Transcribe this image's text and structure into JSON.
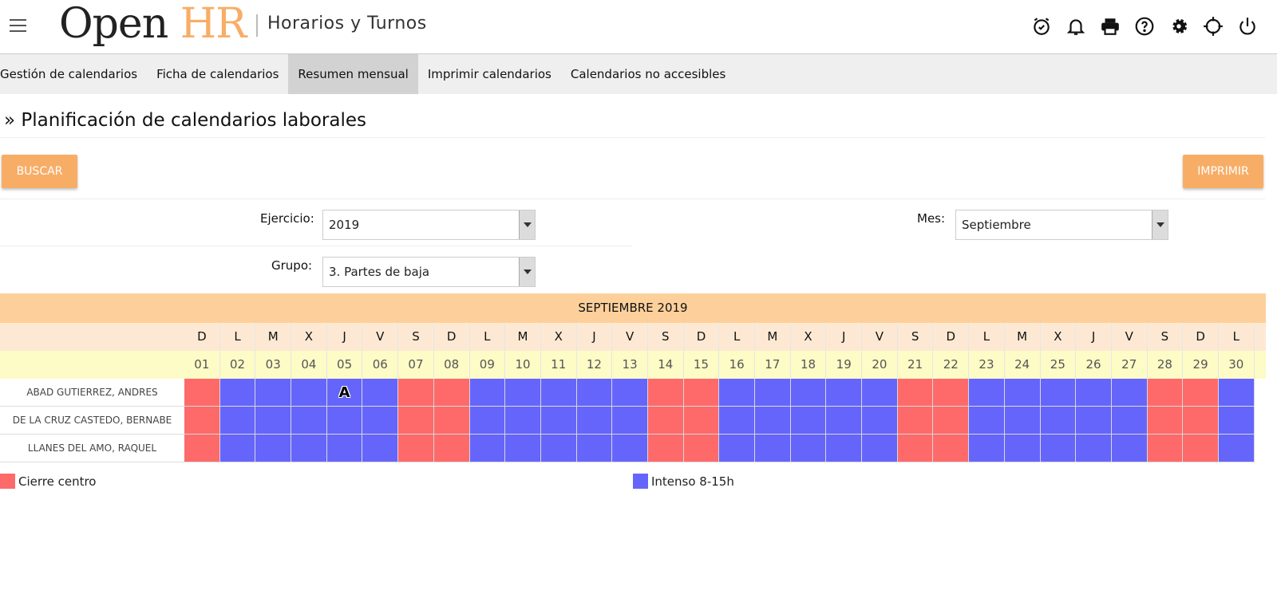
{
  "header": {
    "logo_open": "Open",
    "logo_hr": "HR",
    "app_title": "Horarios y Turnos",
    "icons": [
      "alarm-clock-icon",
      "bell-icon",
      "printer-icon",
      "help-icon",
      "gear-icon",
      "crosshair-icon",
      "power-icon"
    ]
  },
  "tabs": [
    {
      "label": "Gestión de calendarios",
      "active": false
    },
    {
      "label": "Ficha de calendarios",
      "active": false
    },
    {
      "label": "Resumen mensual",
      "active": true
    },
    {
      "label": "Imprimir calendarios",
      "active": false
    },
    {
      "label": "Calendarios no accesibles",
      "active": false
    }
  ],
  "page_title": "» Planificación de calendarios laborales",
  "buttons": {
    "search": "BUSCAR",
    "print": "IMPRIMIR"
  },
  "filters": {
    "ejercicio_label": "Ejercicio:",
    "ejercicio_value": "2019",
    "mes_label": "Mes:",
    "mes_value": "Septiembre",
    "grupo_label": "Grupo:",
    "grupo_value": "3. Partes de baja"
  },
  "calendar": {
    "month_title": "SEPTIEMBRE 2019",
    "day_names": [
      "D",
      "L",
      "M",
      "X",
      "J",
      "V",
      "S",
      "D",
      "L",
      "M",
      "X",
      "J",
      "V",
      "S",
      "D",
      "L",
      "M",
      "X",
      "J",
      "V",
      "S",
      "D",
      "L",
      "M",
      "X",
      "J",
      "V",
      "S",
      "D",
      "L"
    ],
    "day_numbers": [
      "01",
      "02",
      "03",
      "04",
      "05",
      "06",
      "07",
      "08",
      "09",
      "10",
      "11",
      "12",
      "13",
      "14",
      "15",
      "16",
      "17",
      "18",
      "19",
      "20",
      "21",
      "22",
      "23",
      "24",
      "25",
      "26",
      "27",
      "28",
      "29",
      "30"
    ],
    "employees": [
      {
        "name": "ABAD GUTIERREZ, ANDRES",
        "marks": {
          "5": "A"
        }
      },
      {
        "name": "DE LA CRUZ CASTEDO, BERNABE",
        "marks": {}
      },
      {
        "name": "LLANES DEL AMO, RAQUEL",
        "marks": {}
      }
    ],
    "day_types": [
      "closed",
      "intense",
      "intense",
      "intense",
      "intense",
      "intense",
      "closed",
      "closed",
      "intense",
      "intense",
      "intense",
      "intense",
      "intense",
      "closed",
      "closed",
      "intense",
      "intense",
      "intense",
      "intense",
      "intense",
      "closed",
      "closed",
      "intense",
      "intense",
      "intense",
      "intense",
      "intense",
      "closed",
      "closed",
      "intense"
    ]
  },
  "legend": [
    {
      "label": "Cierre centro",
      "color": "#fe6a6a"
    },
    {
      "label": "Intenso 8-15h",
      "color": "#6565fc"
    }
  ]
}
